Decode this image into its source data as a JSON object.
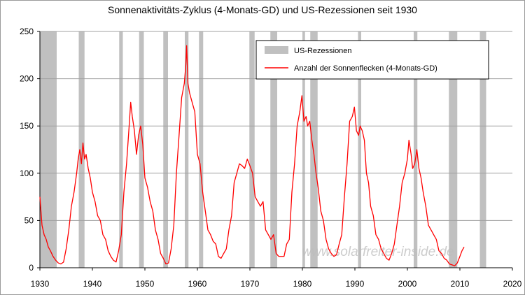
{
  "chart_data": {
    "type": "line",
    "title": "Sonnenaktivitäts-Zyklus (4-Monats-GD) und US-Rezessionen seit 1930",
    "xlabel": "",
    "ylabel": "",
    "xlim": [
      1930,
      2020
    ],
    "ylim": [
      0,
      250
    ],
    "xticks": [
      "1930",
      "1940",
      "1950",
      "1960",
      "1970",
      "1980",
      "1990",
      "2000",
      "2010",
      "2020"
    ],
    "yticks": [
      "0",
      "50",
      "100",
      "150",
      "200",
      "250"
    ],
    "grid": true,
    "legend_position": "top-right",
    "legend": [
      {
        "label": "US-Rezessionen",
        "color": "#c0c0c0",
        "kind": "band"
      },
      {
        "label": "Anzahl der Sonnenflecken (4-Monats-GD)",
        "color": "#ff0000",
        "kind": "line"
      }
    ],
    "watermark": "www.solarfreiter-inside.de",
    "recessions": [
      [
        1929.6,
        1933.2
      ],
      [
        1937.4,
        1938.5
      ],
      [
        1945.1,
        1945.8
      ],
      [
        1948.9,
        1949.8
      ],
      [
        1953.5,
        1954.4
      ],
      [
        1957.6,
        1958.3
      ],
      [
        1960.3,
        1961.1
      ],
      [
        1969.9,
        1970.9
      ],
      [
        1973.9,
        1975.2
      ],
      [
        1980.0,
        1980.5
      ],
      [
        1981.5,
        1982.9
      ],
      [
        1990.6,
        1991.2
      ],
      [
        2001.2,
        2001.9
      ],
      [
        2007.9,
        2009.5
      ],
      [
        2013.8,
        2015.0
      ]
    ],
    "series": [
      {
        "name": "Anzahl der Sonnenflecken (4-Monats-GD)",
        "color": "#ff0000",
        "points": [
          [
            1930.0,
            75
          ],
          [
            1930.4,
            45
          ],
          [
            1930.8,
            35
          ],
          [
            1931.2,
            30
          ],
          [
            1931.6,
            22
          ],
          [
            1932.0,
            18
          ],
          [
            1932.5,
            12
          ],
          [
            1933.0,
            8
          ],
          [
            1933.5,
            5
          ],
          [
            1934.0,
            4
          ],
          [
            1934.5,
            6
          ],
          [
            1935.0,
            20
          ],
          [
            1935.5,
            40
          ],
          [
            1936.0,
            65
          ],
          [
            1936.5,
            80
          ],
          [
            1937.0,
            100
          ],
          [
            1937.3,
            115
          ],
          [
            1937.6,
            125
          ],
          [
            1937.9,
            110
          ],
          [
            1938.2,
            132
          ],
          [
            1938.5,
            115
          ],
          [
            1938.8,
            120
          ],
          [
            1939.2,
            105
          ],
          [
            1939.6,
            95
          ],
          [
            1940.0,
            80
          ],
          [
            1940.5,
            70
          ],
          [
            1941.0,
            55
          ],
          [
            1941.5,
            50
          ],
          [
            1942.0,
            35
          ],
          [
            1942.5,
            30
          ],
          [
            1943.0,
            18
          ],
          [
            1943.5,
            12
          ],
          [
            1944.0,
            8
          ],
          [
            1944.5,
            6
          ],
          [
            1945.0,
            18
          ],
          [
            1945.5,
            35
          ],
          [
            1946.0,
            80
          ],
          [
            1946.5,
            110
          ],
          [
            1947.0,
            150
          ],
          [
            1947.3,
            175
          ],
          [
            1947.6,
            160
          ],
          [
            1948.0,
            145
          ],
          [
            1948.4,
            120
          ],
          [
            1948.8,
            140
          ],
          [
            1949.2,
            150
          ],
          [
            1949.6,
            130
          ],
          [
            1950.0,
            95
          ],
          [
            1950.5,
            85
          ],
          [
            1951.0,
            70
          ],
          [
            1951.5,
            60
          ],
          [
            1952.0,
            40
          ],
          [
            1952.5,
            30
          ],
          [
            1953.0,
            15
          ],
          [
            1953.5,
            10
          ],
          [
            1954.0,
            4
          ],
          [
            1954.5,
            5
          ],
          [
            1955.0,
            20
          ],
          [
            1955.5,
            45
          ],
          [
            1956.0,
            100
          ],
          [
            1956.5,
            140
          ],
          [
            1957.0,
            180
          ],
          [
            1957.5,
            195
          ],
          [
            1957.8,
            215
          ],
          [
            1957.95,
            235
          ],
          [
            1958.2,
            195
          ],
          [
            1958.5,
            185
          ],
          [
            1959.0,
            175
          ],
          [
            1959.5,
            165
          ],
          [
            1960.0,
            120
          ],
          [
            1960.5,
            110
          ],
          [
            1961.0,
            80
          ],
          [
            1961.5,
            60
          ],
          [
            1962.0,
            40
          ],
          [
            1962.5,
            35
          ],
          [
            1963.0,
            28
          ],
          [
            1963.5,
            25
          ],
          [
            1964.0,
            12
          ],
          [
            1964.5,
            10
          ],
          [
            1965.0,
            15
          ],
          [
            1965.5,
            20
          ],
          [
            1966.0,
            40
          ],
          [
            1966.5,
            55
          ],
          [
            1967.0,
            90
          ],
          [
            1967.5,
            100
          ],
          [
            1968.0,
            110
          ],
          [
            1968.5,
            108
          ],
          [
            1969.0,
            105
          ],
          [
            1969.5,
            115
          ],
          [
            1970.0,
            108
          ],
          [
            1970.5,
            100
          ],
          [
            1971.0,
            75
          ],
          [
            1971.5,
            70
          ],
          [
            1972.0,
            65
          ],
          [
            1972.5,
            70
          ],
          [
            1973.0,
            40
          ],
          [
            1973.5,
            35
          ],
          [
            1974.0,
            30
          ],
          [
            1974.5,
            35
          ],
          [
            1975.0,
            15
          ],
          [
            1975.5,
            12
          ],
          [
            1976.0,
            12
          ],
          [
            1976.5,
            12
          ],
          [
            1977.0,
            25
          ],
          [
            1977.5,
            30
          ],
          [
            1978.0,
            80
          ],
          [
            1978.5,
            110
          ],
          [
            1979.0,
            150
          ],
          [
            1979.5,
            165
          ],
          [
            1979.9,
            182
          ],
          [
            1980.3,
            155
          ],
          [
            1980.7,
            160
          ],
          [
            1981.0,
            150
          ],
          [
            1981.4,
            155
          ],
          [
            1981.8,
            135
          ],
          [
            1982.2,
            120
          ],
          [
            1982.6,
            100
          ],
          [
            1983.0,
            85
          ],
          [
            1983.5,
            60
          ],
          [
            1984.0,
            50
          ],
          [
            1984.5,
            30
          ],
          [
            1985.0,
            20
          ],
          [
            1985.5,
            15
          ],
          [
            1986.0,
            12
          ],
          [
            1986.5,
            14
          ],
          [
            1987.0,
            25
          ],
          [
            1987.5,
            35
          ],
          [
            1988.0,
            75
          ],
          [
            1988.5,
            110
          ],
          [
            1989.0,
            155
          ],
          [
            1989.5,
            160
          ],
          [
            1989.9,
            170
          ],
          [
            1990.3,
            145
          ],
          [
            1990.7,
            140
          ],
          [
            1991.0,
            150
          ],
          [
            1991.4,
            145
          ],
          [
            1991.8,
            135
          ],
          [
            1992.2,
            100
          ],
          [
            1992.6,
            90
          ],
          [
            1993.0,
            65
          ],
          [
            1993.5,
            55
          ],
          [
            1994.0,
            35
          ],
          [
            1994.5,
            30
          ],
          [
            1995.0,
            20
          ],
          [
            1995.5,
            15
          ],
          [
            1996.0,
            10
          ],
          [
            1996.5,
            8
          ],
          [
            1997.0,
            15
          ],
          [
            1997.5,
            25
          ],
          [
            1998.0,
            45
          ],
          [
            1998.5,
            65
          ],
          [
            1999.0,
            90
          ],
          [
            1999.5,
            100
          ],
          [
            2000.0,
            115
          ],
          [
            2000.3,
            135
          ],
          [
            2000.7,
            120
          ],
          [
            2001.0,
            105
          ],
          [
            2001.4,
            110
          ],
          [
            2001.8,
            125
          ],
          [
            2002.2,
            105
          ],
          [
            2002.6,
            95
          ],
          [
            2003.0,
            80
          ],
          [
            2003.5,
            65
          ],
          [
            2004.0,
            45
          ],
          [
            2004.5,
            40
          ],
          [
            2005.0,
            35
          ],
          [
            2005.5,
            30
          ],
          [
            2006.0,
            18
          ],
          [
            2006.5,
            15
          ],
          [
            2007.0,
            10
          ],
          [
            2007.5,
            8
          ],
          [
            2008.0,
            4
          ],
          [
            2008.5,
            3
          ],
          [
            2009.0,
            2
          ],
          [
            2009.5,
            5
          ],
          [
            2010.0,
            12
          ],
          [
            2010.4,
            18
          ],
          [
            2010.8,
            22
          ]
        ]
      }
    ]
  }
}
